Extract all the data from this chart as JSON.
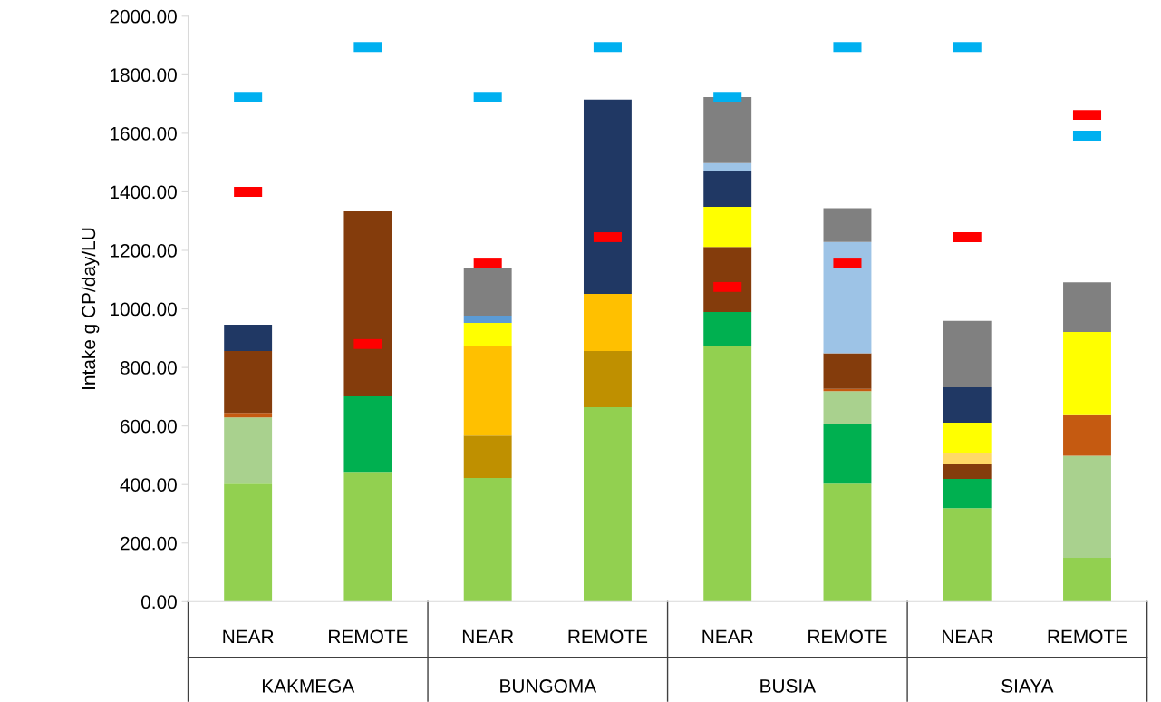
{
  "chart_data": {
    "type": "bar",
    "stacked": true,
    "ylabel": "Intake g CP/day/LU",
    "categories": [
      "NEAR",
      "REMOTE",
      "NEAR",
      "REMOTE",
      "NEAR",
      "REMOTE",
      "NEAR",
      "REMOTE"
    ],
    "annotations": [
      "KAKMEGA",
      "BUNGOMA",
      "BUSIA",
      "SIAYA"
    ],
    "ylim": [
      0,
      2000
    ],
    "yticks": [
      {
        "value": 0,
        "label": "0.00"
      },
      {
        "value": 200,
        "label": "200.00"
      },
      {
        "value": 400,
        "label": "400.00"
      },
      {
        "value": 600,
        "label": "600.00"
      },
      {
        "value": 800,
        "label": "800.00"
      },
      {
        "value": 1000,
        "label": "1000.00"
      },
      {
        "value": 1200,
        "label": "1200.00"
      },
      {
        "value": 1400,
        "label": "1400.00"
      },
      {
        "value": 1600,
        "label": "1600.00"
      },
      {
        "value": 1800,
        "label": "1800.00"
      },
      {
        "value": 2000,
        "label": "2000.00"
      }
    ],
    "grid": false,
    "series": [
      {
        "color": "#92d050",
        "values": [
          403,
          443,
          422,
          664,
          874,
          403,
          319,
          150
        ]
      },
      {
        "color": "#00b050",
        "values": [
          0,
          258,
          0,
          0,
          115,
          205,
          100,
          0
        ]
      },
      {
        "color": "#a9d18e",
        "values": [
          226,
          0,
          0,
          0,
          0,
          111,
          0,
          348
        ]
      },
      {
        "color": "#c55a11",
        "values": [
          16,
          0,
          0,
          0,
          0,
          8,
          0,
          139
        ]
      },
      {
        "color": "#843c0c",
        "values": [
          211,
          632,
          0,
          0,
          223,
          121,
          50,
          0
        ]
      },
      {
        "color": "#ffd966",
        "values": [
          0,
          0,
          0,
          0,
          0,
          0,
          40,
          0
        ]
      },
      {
        "color": "#bf9000",
        "values": [
          0,
          0,
          145,
          192,
          0,
          0,
          0,
          0
        ]
      },
      {
        "color": "#ffc000",
        "values": [
          0,
          0,
          307,
          195,
          0,
          0,
          0,
          0
        ]
      },
      {
        "color": "#ffff00",
        "values": [
          0,
          0,
          78,
          0,
          137,
          0,
          102,
          284
        ]
      },
      {
        "color": "#203864",
        "values": [
          90,
          0,
          0,
          664,
          124,
          0,
          121,
          0
        ]
      },
      {
        "color": "#9dc3e6",
        "values": [
          0,
          0,
          0,
          0,
          25,
          381,
          0,
          0
        ]
      },
      {
        "color": "#5b9bd5",
        "values": [
          0,
          0,
          25,
          0,
          0,
          0,
          0,
          0
        ]
      },
      {
        "color": "#808080",
        "values": [
          0,
          0,
          161,
          0,
          226,
          115,
          227,
          170
        ]
      },
      {
        "type": "scatter",
        "color": "#ff0000",
        "values": [
          1400,
          880,
          1155,
          1245,
          1075,
          1155,
          1245,
          1663
        ]
      },
      {
        "type": "scatter",
        "color": "#00b0f0",
        "values": [
          1725,
          1895,
          1725,
          1895,
          1725,
          1895,
          1895,
          1592
        ]
      }
    ]
  }
}
